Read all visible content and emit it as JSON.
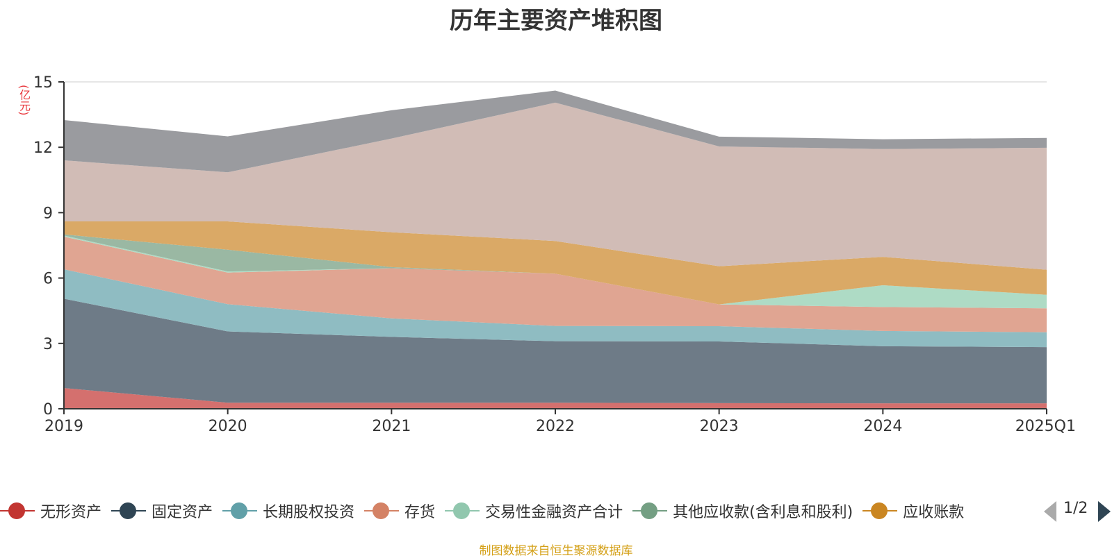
{
  "title": "历年主要资产堆积图",
  "unit": "(亿元)",
  "source_note": "制图数据来自恒生聚源数据库",
  "legend_pager": "1/2",
  "chart_data": {
    "type": "area",
    "stacked": true,
    "title": "历年主要资产堆积图",
    "ylabel": "(亿元)",
    "ylim": [
      0,
      15
    ],
    "yticks": [
      0,
      3,
      6,
      9,
      12,
      15
    ],
    "grid": true,
    "legend_position": "bottom",
    "categories": [
      "2019",
      "2020",
      "2021",
      "2022",
      "2023",
      "2024",
      "2025Q1"
    ],
    "series": [
      {
        "name": "无形资产",
        "color": "#c23531",
        "fill": "#d4706e",
        "values": [
          0.95,
          0.28,
          0.28,
          0.28,
          0.26,
          0.25,
          0.25
        ]
      },
      {
        "name": "固定资产",
        "color": "#2f4554",
        "fill": "#6e7b87",
        "values": [
          4.1,
          3.27,
          3.02,
          2.82,
          2.83,
          2.62,
          2.58
        ]
      },
      {
        "name": "长期股权投资",
        "color": "#61a0a8",
        "fill": "#8fbcc2",
        "values": [
          1.35,
          1.25,
          0.85,
          0.7,
          0.7,
          0.7,
          0.68
        ]
      },
      {
        "name": "存货",
        "color": "#d48265",
        "fill": "#e0a592",
        "values": [
          1.5,
          1.45,
          2.3,
          2.4,
          1.0,
          1.1,
          1.1
        ]
      },
      {
        "name": "交易性金融资产合计",
        "color": "#91c7ae",
        "fill": "#aedbc5",
        "values": [
          0.05,
          0.05,
          0.0,
          0.0,
          0.0,
          1.0,
          0.62
        ]
      },
      {
        "name": "其他应收款(含利息和股利)",
        "color": "#749f83",
        "fill": "#9ab8a3",
        "values": [
          0.05,
          1.0,
          0.05,
          0.0,
          0.0,
          0.0,
          0.0
        ]
      },
      {
        "name": "应收账款",
        "color": "#ca8622",
        "fill": "#daa966",
        "values": [
          0.6,
          1.3,
          1.6,
          1.5,
          1.75,
          1.3,
          1.15
        ]
      },
      {
        "name": "",
        "color": "#bda29a",
        "fill": "#d1bcb6",
        "values": [
          2.8,
          2.25,
          4.3,
          6.35,
          5.5,
          4.95,
          5.6
        ]
      },
      {
        "name": "",
        "color": "#6e7074",
        "fill": "#9a9b9f",
        "values": [
          1.85,
          1.65,
          1.3,
          0.55,
          0.45,
          0.45,
          0.45
        ]
      }
    ]
  }
}
